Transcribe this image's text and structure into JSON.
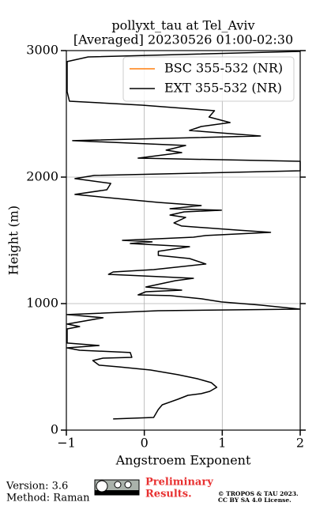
{
  "chart_data": {
    "type": "line",
    "orientation": "vertical",
    "title": [
      "pollyxt_tau at Tel_Aviv",
      "[Averaged] 20230526 01:00-02:30"
    ],
    "xlabel": "Angstroem Exponent",
    "ylabel": "Height (m)",
    "xlim": [
      -1,
      2
    ],
    "ylim": [
      0,
      3000
    ],
    "xticks": [
      {
        "value": -1,
        "label": "−1"
      },
      0,
      1,
      2
    ],
    "yticks": [
      0,
      1000,
      2000,
      3000
    ],
    "grid": true,
    "legend": "upper right",
    "y": [
      88,
      100,
      163,
      200,
      244,
      275,
      288,
      306,
      338,
      375,
      406,
      438,
      475,
      500,
      513,
      550,
      569,
      575,
      613,
      631,
      650,
      669,
      688,
      800,
      819,
      838,
      888,
      913,
      944,
      956,
      988,
      1013,
      1038,
      1063,
      1069,
      1094,
      1106,
      1131,
      1181,
      1200,
      1213,
      1231,
      1250,
      1269,
      1313,
      1356,
      1381,
      1413,
      1450,
      1475,
      1488,
      1500,
      1525,
      1538,
      1563,
      1581,
      1613,
      1638,
      1681,
      1700,
      1725,
      1738,
      1750,
      1775,
      1800,
      1838,
      1863,
      1900,
      1950,
      1988,
      2013,
      2050,
      2125,
      2150,
      2194,
      2213,
      2250,
      2288,
      2325,
      2369,
      2400,
      2431,
      2475,
      2525,
      2569,
      2600,
      2675,
      2913,
      2950,
      2994
    ],
    "series": [
      {
        "name": "BSC 355-532 (NR)",
        "color": "#ff7f0e",
        "values": [
          null,
          null,
          null,
          null,
          null,
          null,
          null,
          null,
          null,
          null,
          null,
          null,
          null,
          null,
          null,
          null,
          null,
          null,
          null,
          null,
          null,
          null,
          null,
          null,
          null,
          null,
          null,
          null,
          null,
          null,
          null,
          null,
          null,
          null,
          null,
          null,
          null,
          null,
          null,
          null,
          null,
          null,
          null,
          null,
          null,
          null,
          null,
          null,
          null,
          null,
          null,
          null,
          null,
          null,
          null,
          null,
          null,
          null,
          null,
          null,
          null,
          null,
          null,
          null,
          null,
          null,
          null,
          null,
          null,
          null,
          null,
          null,
          null,
          null,
          null,
          null,
          null,
          null,
          null,
          null,
          null,
          null,
          null,
          null,
          null,
          null,
          null,
          null,
          null,
          null
        ]
      },
      {
        "name": "EXT 355-532 (NR)",
        "color": "#000000",
        "values": [
          -0.4,
          0.12,
          0.18,
          0.23,
          0.43,
          0.56,
          0.73,
          0.84,
          0.93,
          0.86,
          0.68,
          0.43,
          0.08,
          -0.33,
          -0.58,
          -0.66,
          -0.53,
          -0.16,
          -0.18,
          -0.83,
          -0.99,
          -0.58,
          -0.99,
          -0.99,
          -0.83,
          -0.99,
          -0.53,
          -0.99,
          0.18,
          2.0,
          1.49,
          0.99,
          0.73,
          0.33,
          -0.08,
          0.02,
          0.48,
          0.02,
          0.4,
          0.63,
          0.18,
          -0.46,
          -0.4,
          0.12,
          0.79,
          0.58,
          0.18,
          0.18,
          0.58,
          -0.18,
          0.1,
          -0.28,
          0.63,
          0.79,
          1.62,
          1.19,
          0.48,
          0.38,
          0.53,
          0.33,
          0.51,
          0.99,
          0.33,
          0.73,
          0.18,
          -0.48,
          -0.89,
          -0.48,
          -0.43,
          -0.89,
          -0.64,
          2.0,
          2.0,
          -0.08,
          0.48,
          0.28,
          0.53,
          -0.92,
          1.49,
          0.58,
          0.73,
          1.1,
          0.83,
          0.9,
          -0.03,
          -0.96,
          -0.99,
          -0.99,
          -0.72,
          2.0
        ]
      }
    ]
  },
  "footer": {
    "version": "Version: 3.6",
    "method": "Method: Raman",
    "notice": [
      "Preliminary",
      "Results."
    ],
    "license": [
      "© TROPOS & TAU 2023.",
      "CC BY SA 4.0 License."
    ]
  }
}
